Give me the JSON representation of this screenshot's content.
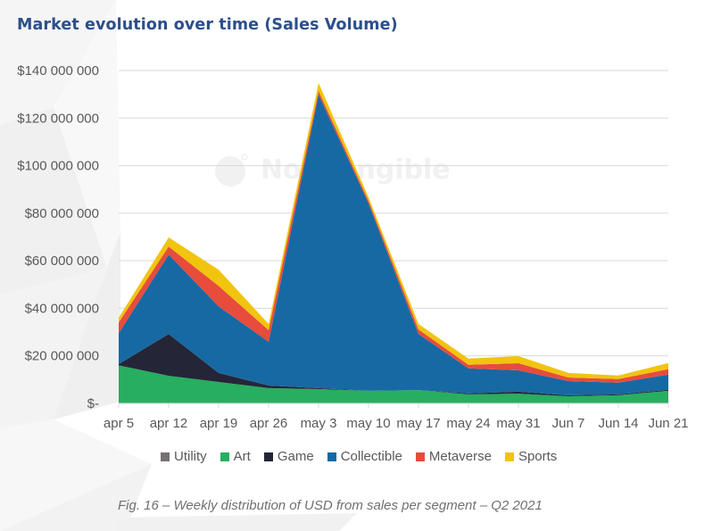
{
  "title": "Market evolution over time (Sales Volume)",
  "caption": "Fig. 16 – Weekly distribution of USD from sales per segment – Q2 2021",
  "watermark_text": "NonFungible",
  "chart_data": {
    "type": "area",
    "stacked": true,
    "title": "Market evolution over time (Sales Volume)",
    "xlabel": "",
    "ylabel": "",
    "ylim": [
      0,
      140000000
    ],
    "grid": true,
    "legend_position": "bottom",
    "categories": [
      "apr 5",
      "apr 12",
      "apr 19",
      "apr 26",
      "may 3",
      "may 10",
      "may 17",
      "may 24",
      "may 31",
      "Jun 7",
      "Jun 14",
      "Jun 21"
    ],
    "y_ticks": [
      {
        "value": 0,
        "label": "$-"
      },
      {
        "value": 20000000,
        "label": "$20 000 000"
      },
      {
        "value": 40000000,
        "label": "$40 000 000"
      },
      {
        "value": 60000000,
        "label": "$60 000 000"
      },
      {
        "value": 80000000,
        "label": "$80 000 000"
      },
      {
        "value": 100000000,
        "label": "$100 000 000"
      },
      {
        "value": 120000000,
        "label": "$120 000 000"
      },
      {
        "value": 140000000,
        "label": "$140 000 000"
      }
    ],
    "series": [
      {
        "name": "Utility",
        "color": "#767171",
        "values": [
          0,
          0,
          0,
          0,
          0,
          0,
          0,
          0,
          0,
          0,
          0,
          0
        ]
      },
      {
        "name": "Art",
        "color": "#27ae60",
        "values": [
          16000000,
          11600000,
          9000000,
          6400000,
          6000000,
          5300000,
          5600000,
          3800000,
          4100000,
          3000000,
          3400000,
          5300000
        ]
      },
      {
        "name": "Game",
        "color": "#252538",
        "values": [
          500000,
          17600000,
          3800000,
          1100000,
          400000,
          0,
          0,
          400000,
          800000,
          400000,
          400000,
          400000
        ]
      },
      {
        "name": "Collectible",
        "color": "#1769a3",
        "values": [
          13000000,
          33400000,
          28000000,
          18400000,
          123500000,
          78800000,
          23600000,
          10500000,
          9000000,
          6000000,
          4900000,
          6400000
        ]
      },
      {
        "name": "Metaverse",
        "color": "#e74c3c",
        "values": [
          4500000,
          3400000,
          8600000,
          4900000,
          1500000,
          1100000,
          1900000,
          1500000,
          3000000,
          1500000,
          1500000,
          2300000
        ]
      },
      {
        "name": "Sports",
        "color": "#f1c40f",
        "values": [
          2000000,
          3800000,
          6800000,
          2600000,
          3400000,
          1500000,
          2300000,
          2600000,
          3000000,
          1900000,
          1500000,
          2600000
        ]
      }
    ]
  }
}
